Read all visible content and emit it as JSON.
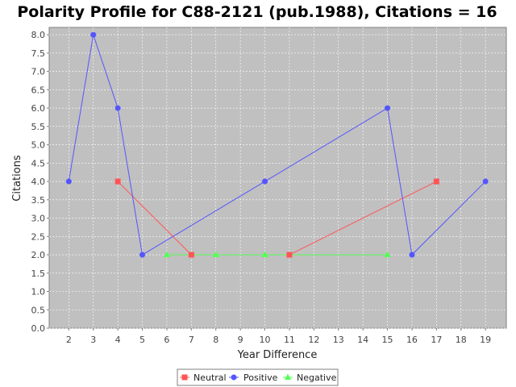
{
  "chart_data": {
    "type": "line",
    "title": "Polarity Profile for C88-2121 (pub.1988), Citations = 16",
    "xlabel": "Year Difference",
    "ylabel": "Citations",
    "categories": [
      "2",
      "3",
      "4",
      "5",
      "6",
      "7",
      "8",
      "9",
      "10",
      "11",
      "12",
      "13",
      "14",
      "15",
      "16",
      "17",
      "18",
      "19"
    ],
    "ylim": [
      0,
      8.2
    ],
    "yticks": [
      "0.0",
      "0.5",
      "1.0",
      "1.5",
      "2.0",
      "2.5",
      "3.0",
      "3.5",
      "4.0",
      "4.5",
      "5.0",
      "5.5",
      "6.0",
      "6.5",
      "7.0",
      "7.5",
      "8.0"
    ],
    "grid": true,
    "legend_position": "bottom",
    "series": [
      {
        "name": "Neutral",
        "color": "#ff5555",
        "marker": "square",
        "points": [
          {
            "x": "4",
            "y": 4
          },
          {
            "x": "7",
            "y": 2
          },
          {
            "x": "11",
            "y": 2
          },
          {
            "x": "17",
            "y": 4
          }
        ]
      },
      {
        "name": "Positive",
        "color": "#5555ff",
        "marker": "circle",
        "points": [
          {
            "x": "2",
            "y": 4
          },
          {
            "x": "3",
            "y": 8
          },
          {
            "x": "4",
            "y": 6
          },
          {
            "x": "5",
            "y": 2
          },
          {
            "x": "10",
            "y": 4
          },
          {
            "x": "15",
            "y": 6
          },
          {
            "x": "16",
            "y": 2
          },
          {
            "x": "19",
            "y": 4
          }
        ]
      },
      {
        "name": "Negative",
        "color": "#55ff55",
        "marker": "triangle",
        "points": [
          {
            "x": "6",
            "y": 2
          },
          {
            "x": "8",
            "y": 2
          },
          {
            "x": "10",
            "y": 2
          },
          {
            "x": "15",
            "y": 2
          }
        ]
      }
    ]
  }
}
